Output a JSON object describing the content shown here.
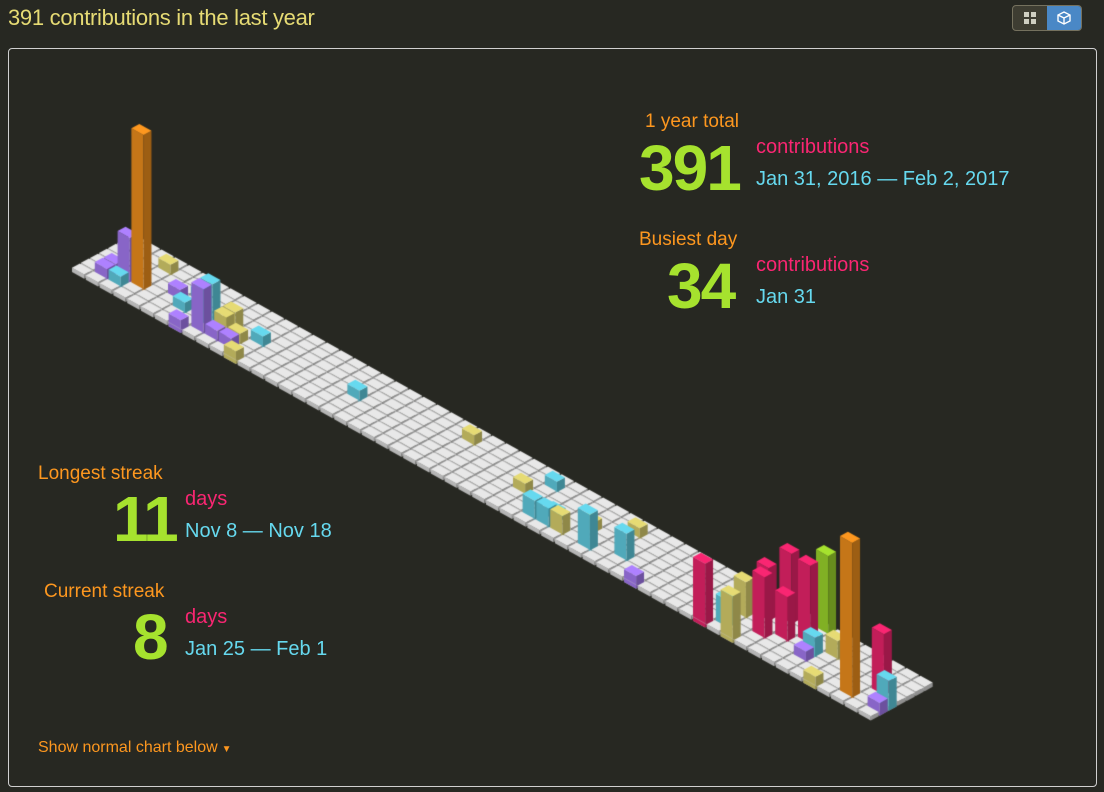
{
  "header": {
    "title": "391 contributions in the last year",
    "view_toggle": [
      {
        "icon": "grid-icon",
        "active": false
      },
      {
        "icon": "cube-icon",
        "active": true
      }
    ]
  },
  "stats": {
    "year_total": {
      "label": "1 year total",
      "value": "391",
      "unit": "contributions",
      "range": "Jan 31, 2016 — Feb 2, 2017"
    },
    "busiest_day": {
      "label": "Busiest day",
      "value": "34",
      "unit": "contributions",
      "range": "Jan 31"
    },
    "longest_streak": {
      "label": "Longest streak",
      "value": "11",
      "unit": "days",
      "range": "Nov 8 — Nov 18"
    },
    "current_streak": {
      "label": "Current streak",
      "value": "8",
      "unit": "days",
      "range": "Jan 25 — Feb 1"
    }
  },
  "footer": {
    "toggle_label": "Show normal chart below",
    "toggle_icon": "caret-down-icon"
  },
  "colors": {
    "background": "#272822",
    "tile": "#e8e8e8",
    "orange": "#fd971f",
    "pink": "#f92672",
    "green": "#a6e22e",
    "cyan": "#66d9ef",
    "yellow": "#e6db74",
    "purple": "#ae81ff"
  }
}
